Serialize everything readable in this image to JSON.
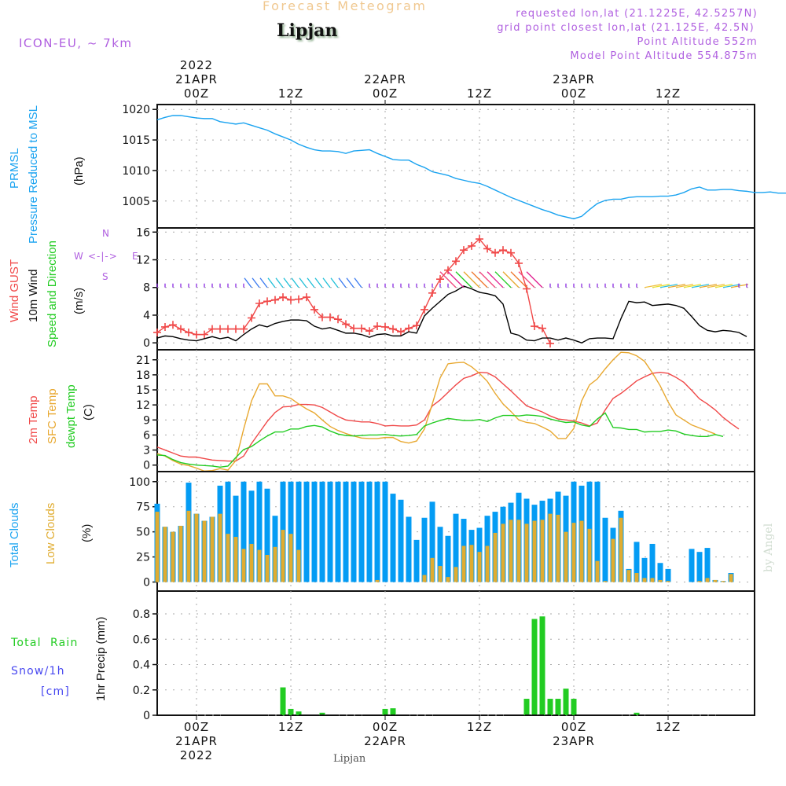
{
  "header": {
    "product_title": "Forecast Meteogram",
    "location": "Lipjan",
    "model": "ICON-EU, ~ 7km",
    "requested": "requested lon,lat (21.1225E, 42.5257N)",
    "grid_point": "grid point closest lon,lat (21.125E, 42.5N)",
    "point_altitude": "Point Altitude 552m",
    "model_altitude": "Model Point Altitude 554.875m",
    "footer_location": "Lipjan",
    "watermark": "by Angel"
  },
  "colors": {
    "pressure": "#1aa3f0",
    "gust": "#f04848",
    "wind": "#000000",
    "temp2m": "#f04848",
    "sfc": "#e8a830",
    "dewpt": "#22cc22",
    "total_clouds": "#049cf4",
    "low_clouds": "#e0ac30",
    "rain": "#22cc22",
    "snow": "#4848f0",
    "model_text": "#b060e0",
    "title_text": "#f0c890"
  },
  "labels": {
    "pressure": [
      "PRMSL",
      "Pressure Reduced to MSL",
      "(hPa)"
    ],
    "wind": [
      "Wind GUST",
      "10m Wind",
      "Speed and Direction",
      "(m/s)"
    ],
    "compass": {
      "n": "N",
      "s": "S",
      "w": "W",
      "e": "E",
      "arrows": "<-|->"
    },
    "temp": [
      "2m Temp",
      "SFC Temp",
      "dewpt Temp",
      "(C)"
    ],
    "clouds": [
      "Total Clouds",
      "Low Clouds",
      "(%)"
    ],
    "precip": [
      "Total  Rain",
      "Snow/1h",
      "[cm]",
      "1hr Precip (mm)"
    ]
  },
  "chart_data": {
    "type": "line",
    "title": "Forecast Meteogram - Lipjan",
    "x_unit": "hours from 2022-04-21 00Z",
    "xlim": [
      -5,
      71
    ],
    "x_ticks_top": [
      {
        "h": 0,
        "lines": [
          "2022",
          "21APR",
          "00Z"
        ]
      },
      {
        "h": 12,
        "lines": [
          "12Z"
        ]
      },
      {
        "h": 24,
        "lines": [
          "22APR",
          "00Z"
        ]
      },
      {
        "h": 36,
        "lines": [
          "12Z"
        ]
      },
      {
        "h": 48,
        "lines": [
          "23APR",
          "00Z"
        ]
      },
      {
        "h": 60,
        "lines": [
          "12Z"
        ]
      }
    ],
    "x_ticks_bottom": [
      {
        "h": 0,
        "lines": [
          "00Z",
          "21APR",
          "2022"
        ]
      },
      {
        "h": 12,
        "lines": [
          "12Z"
        ]
      },
      {
        "h": 24,
        "lines": [
          "00Z",
          "22APR"
        ]
      },
      {
        "h": 36,
        "lines": [
          "12Z"
        ]
      },
      {
        "h": 48,
        "lines": [
          "00Z",
          "23APR"
        ]
      },
      {
        "h": 60,
        "lines": [
          "12Z"
        ]
      }
    ],
    "hours_start": -5,
    "panels": [
      {
        "name": "pressure",
        "type": "line",
        "ylabel": "(hPa)",
        "ylim": [
          1000.6,
          1020.8
        ],
        "yticks": [
          1005,
          1010,
          1015,
          1020
        ],
        "series": [
          {
            "name": "PRMSL",
            "color_key": "pressure",
            "values": [
              1018.3,
              1018.7,
              1019.0,
              1019.0,
              1018.8,
              1018.6,
              1018.5,
              1018.5,
              1018.0,
              1017.8,
              1017.6,
              1017.8,
              1017.4,
              1017.0,
              1016.6,
              1016.0,
              1015.5,
              1015.0,
              1014.3,
              1013.8,
              1013.4,
              1013.2,
              1013.2,
              1013.1,
              1012.8,
              1013.2,
              1013.3,
              1013.4,
              1012.8,
              1012.3,
              1011.8,
              1011.7,
              1011.7,
              1011.0,
              1010.5,
              1009.8,
              1009.5,
              1009.2,
              1008.7,
              1008.4,
              1008.1,
              1007.9,
              1007.4,
              1006.8,
              1006.2,
              1005.6,
              1005.1,
              1004.6,
              1004.1,
              1003.6,
              1003.2,
              1002.7,
              1002.4,
              1002.1,
              1002.5,
              1003.6,
              1004.6,
              1005.1,
              1005.3,
              1005.3,
              1005.6,
              1005.7,
              1005.7,
              1005.7,
              1005.8,
              1005.8,
              1006.0,
              1006.4,
              1007.0,
              1007.3,
              1006.8,
              1006.8,
              1006.9,
              1006.9,
              1006.7,
              1006.6,
              1006.4,
              1006.4,
              1006.5,
              1006.3,
              1006.3,
              1006.5,
              1006.7,
              1007.0,
              1007.4,
              1008.0,
              1008.9,
              1009.8,
              1010.4,
              1011.0,
              1011.6,
              1012.0,
              1012.1
            ]
          }
        ]
      },
      {
        "name": "wind",
        "type": "line",
        "ylabel": "(m/s)",
        "ylim": [
          -1,
          16.6
        ],
        "yticks": [
          0,
          4,
          8,
          12,
          16
        ],
        "series": [
          {
            "name": "Wind GUST",
            "color_key": "gust",
            "marker": "+",
            "values": [
              1.5,
              2.3,
              2.6,
              2.0,
              1.5,
              1.2,
              1.2,
              2.0,
              2.0,
              2.0,
              2.0,
              2.0,
              3.6,
              5.7,
              6.0,
              6.2,
              6.6,
              6.2,
              6.3,
              6.6,
              4.8,
              3.7,
              3.7,
              3.4,
              2.7,
              2.1,
              2.1,
              1.7,
              2.4,
              2.3,
              2.0,
              1.6,
              2.1,
              2.5,
              4.8,
              7.2,
              9.2,
              10.5,
              11.8,
              13.4,
              14.0,
              15.0,
              13.6,
              13.0,
              13.4,
              13.0,
              11.5,
              7.8,
              2.4,
              2.1,
              -0.1
            ]
          },
          {
            "name": "10m Wind",
            "color_key": "wind",
            "values": [
              0.7,
              1.0,
              0.9,
              0.6,
              0.4,
              0.3,
              0.6,
              0.9,
              0.6,
              0.8,
              0.3,
              1.2,
              2.0,
              2.6,
              2.3,
              2.8,
              3.1,
              3.3,
              3.3,
              3.2,
              2.4,
              2.0,
              2.2,
              1.8,
              1.4,
              1.4,
              1.2,
              0.8,
              1.2,
              1.3,
              1.0,
              1.0,
              1.6,
              1.4,
              3.9,
              5.0,
              6.0,
              7.0,
              7.5,
              8.2,
              7.8,
              7.3,
              7.1,
              6.8,
              5.6,
              1.4,
              1.1,
              0.4,
              0.3,
              0.7,
              0.7,
              0.4,
              0.7,
              0.4,
              0.0,
              0.6,
              0.7,
              0.7,
              0.6,
              3.5,
              6.0,
              5.8,
              5.9,
              5.4,
              5.5,
              5.6,
              5.4,
              5.0,
              3.8,
              2.5,
              1.8,
              1.6,
              1.8,
              1.7,
              1.5,
              0.9
            ]
          }
        ]
      },
      {
        "name": "temperature",
        "type": "line",
        "ylabel": "(C)",
        "ylim": [
          -1.3,
          23.0
        ],
        "yticks": [
          0,
          3,
          6,
          9,
          12,
          15,
          18,
          21
        ],
        "series": [
          {
            "name": "2m Temp",
            "color_key": "temp2m",
            "values": [
              3.6,
              3.0,
              2.4,
              1.8,
              1.6,
              1.6,
              1.3,
              1.0,
              0.9,
              0.8,
              0.8,
              1.8,
              4.3,
              6.5,
              8.7,
              10.5,
              11.6,
              11.7,
              12.1,
              12.1,
              12.0,
              11.5,
              10.6,
              9.7,
              9.0,
              8.8,
              8.6,
              8.6,
              8.3,
              7.8,
              7.9,
              7.8,
              7.8,
              8.0,
              9.0,
              11.8,
              13.0,
              14.5,
              16.0,
              17.3,
              17.8,
              18.5,
              18.4,
              17.6,
              16.2,
              14.8,
              13.3,
              11.8,
              11.2,
              10.6,
              9.8,
              9.2,
              9.0,
              8.8,
              8.4,
              7.8,
              8.4,
              11.0,
              13.3,
              14.3,
              15.5,
              16.8,
              17.6,
              18.3,
              18.5,
              18.3,
              17.5,
              16.5,
              14.9,
              13.2,
              12.2,
              11.0,
              9.5,
              8.3,
              7.2
            ]
          },
          {
            "name": "SFC Temp",
            "color_key": "sfc",
            "values": [
              2.3,
              1.8,
              0.9,
              0.2,
              -0.1,
              -0.6,
              -1.2,
              -1.1,
              -0.7,
              -1.0,
              0.9,
              7.2,
              12.8,
              16.2,
              16.2,
              13.8,
              13.8,
              13.3,
              12.2,
              11.2,
              10.4,
              9.0,
              7.7,
              6.9,
              6.3,
              5.8,
              5.4,
              5.3,
              5.3,
              5.5,
              5.5,
              4.7,
              4.4,
              4.8,
              7.2,
              12.2,
              17.4,
              20.2,
              20.4,
              20.5,
              19.6,
              18.3,
              16.7,
              14.3,
              12.2,
              10.7,
              9.0,
              8.5,
              8.3,
              7.6,
              6.8,
              5.3,
              5.3,
              7.3,
              12.8,
              16.0,
              17.2,
              19.2,
              21.0,
              22.5,
              22.4,
              21.8,
              20.7,
              18.4,
              15.8,
              12.6,
              10.0,
              9.0,
              8.0,
              7.4,
              6.8,
              6.2
            ]
          },
          {
            "name": "dewpt Temp",
            "color_key": "dewpt",
            "values": [
              2.0,
              1.9,
              1.1,
              0.5,
              0.2,
              0.0,
              -0.1,
              -0.2,
              -0.4,
              -0.2,
              1.5,
              3.1,
              3.7,
              4.8,
              5.8,
              6.6,
              6.6,
              7.2,
              7.2,
              7.7,
              7.9,
              7.6,
              6.8,
              6.2,
              5.9,
              5.8,
              5.9,
              6.0,
              6.0,
              6.1,
              5.9,
              5.8,
              5.9,
              6.1,
              7.8,
              8.4,
              8.9,
              9.3,
              9.1,
              8.9,
              8.9,
              9.1,
              8.7,
              9.4,
              9.9,
              9.9,
              9.8,
              10.0,
              9.9,
              9.7,
              9.2,
              8.8,
              8.5,
              8.6,
              8.0,
              7.7,
              9.2,
              10.4,
              7.5,
              7.4,
              7.1,
              7.1,
              6.6,
              6.7,
              6.7,
              7.0,
              6.8,
              6.2,
              5.9,
              5.7,
              5.7,
              6.1,
              5.7
            ]
          }
        ]
      },
      {
        "name": "clouds",
        "type": "bar",
        "ylabel": "(%)",
        "ylim": [
          -9,
          110
        ],
        "yticks": [
          0,
          25,
          50,
          75,
          100
        ],
        "series": [
          {
            "name": "Total Clouds",
            "color_key": "total_clouds",
            "values": [
              78,
              55,
              50,
              56,
              99,
              68,
              61,
              65,
              96,
              100,
              86,
              100,
              91,
              100,
              93,
              66,
              100,
              100,
              100,
              100,
              100,
              100,
              100,
              100,
              100,
              100,
              100,
              100,
              100,
              100,
              88,
              82,
              65,
              42,
              64,
              80,
              55,
              46,
              68,
              63,
              52,
              54,
              66,
              70,
              75,
              79,
              89,
              83,
              77,
              81,
              83,
              90,
              86,
              100,
              96,
              100,
              100,
              64,
              54,
              71,
              13,
              40,
              24,
              38,
              19,
              13,
              0,
              0,
              33,
              30,
              34,
              2,
              1,
              9
            ]
          },
          {
            "name": "Low Clouds",
            "color_key": "low_clouds",
            "values": [
              70,
              55,
              50,
              56,
              71,
              68,
              61,
              65,
              68,
              48,
              45,
              33,
              38,
              32,
              27,
              35,
              52,
              48,
              32,
              0,
              0,
              0,
              0,
              0,
              0,
              0,
              0,
              0,
              2,
              0,
              0,
              0,
              0,
              0,
              7,
              24,
              16,
              5,
              15,
              36,
              37,
              30,
              36,
              49,
              58,
              62,
              62,
              58,
              61,
              62,
              68,
              67,
              50,
              59,
              61,
              53,
              21,
              1,
              43,
              64,
              12,
              9,
              4,
              4,
              2,
              1,
              0,
              0,
              0,
              1,
              4,
              2,
              1,
              8
            ]
          }
        ]
      },
      {
        "name": "precip",
        "type": "bar",
        "ylabel": "1hr Precip (mm)",
        "ylim": [
          0,
          0.98
        ],
        "yticks": [
          0,
          0.2,
          0.4,
          0.6,
          0.8
        ],
        "series": [
          {
            "name": "Total Rain",
            "color_key": "rain",
            "points": [
              [
                11,
                0.22
              ],
              [
                12,
                0.05
              ],
              [
                13,
                0.03
              ],
              [
                16,
                0.02
              ],
              [
                24,
                0.05
              ],
              [
                25,
                0.055
              ],
              [
                42,
                0.13
              ],
              [
                43,
                0.76
              ],
              [
                44,
                0.78
              ],
              [
                45,
                0.13
              ],
              [
                46,
                0.13
              ],
              [
                47,
                0.21
              ],
              [
                48,
                0.13
              ],
              [
                56,
                0.02
              ]
            ]
          },
          {
            "name": "Snow/1h",
            "color_key": "snow",
            "points": []
          }
        ]
      }
    ],
    "wind_direction_arrows": {
      "note": "arrows plotted along 8 m/s line, direction vector shown, color by speed",
      "hours_with_strong_arrows": [
        7,
        8,
        9,
        10,
        11,
        12,
        13,
        14,
        15,
        16,
        17,
        18,
        19,
        20,
        21,
        33,
        34,
        35,
        36,
        37,
        38,
        39,
        40,
        41,
        42,
        43,
        44,
        57,
        58,
        59,
        60,
        61,
        62,
        63,
        64,
        65,
        66,
        67,
        68
      ]
    }
  }
}
